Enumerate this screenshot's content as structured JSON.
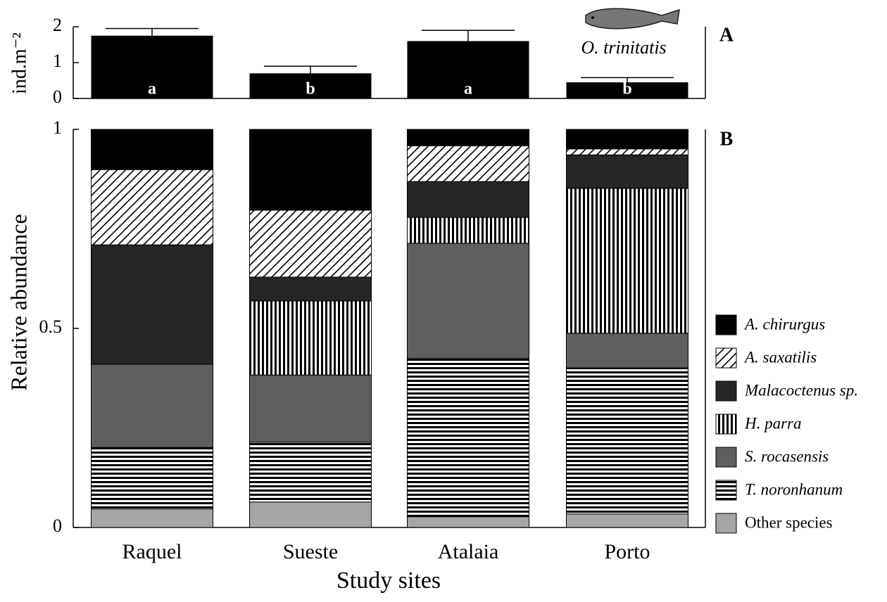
{
  "chart_data": [
    {
      "type": "bar",
      "panel": "A",
      "ylabel": "ind.m⁻²",
      "values": [
        1.75,
        0.7,
        1.6,
        0.45
      ],
      "errors": [
        0.2,
        0.2,
        0.3,
        0.13
      ],
      "group_letters": [
        "a",
        "b",
        "a",
        "b"
      ],
      "color": "#000000",
      "ylim": [
        0,
        2
      ],
      "yticks": [
        0,
        1,
        2
      ],
      "annotation": "O. trinitatis"
    },
    {
      "type": "stacked_bar",
      "panel": "B",
      "xlabel": "Study sites",
      "ylabel": "Relative abundance",
      "categories": [
        "Raquel",
        "Sueste",
        "Atalaia",
        "Porto"
      ],
      "ylim": [
        0,
        1
      ],
      "yticks": [
        0,
        0.5,
        1
      ],
      "legend": "right",
      "series": [
        {
          "name": "A. chirurgus",
          "color": "#000000",
          "italic": true,
          "values": [
            0.101,
            0.203,
            0.041,
            0.049
          ]
        },
        {
          "name": "A. saxatilis",
          "color": "#000000",
          "pattern": "diagonal",
          "italic": true,
          "values": [
            0.189,
            0.168,
            0.09,
            0.015
          ]
        },
        {
          "name": "Malacoctenus sp.",
          "color": "#262626",
          "italic": true,
          "values": [
            0.3,
            0.06,
            0.09,
            0.084
          ]
        },
        {
          "name": "H. parra",
          "color": "#000000",
          "pattern": "vertical",
          "italic": true,
          "values": [
            0,
            0.186,
            0.065,
            0.364
          ]
        },
        {
          "name": "S. rocasensis",
          "color": "#5e5e5e",
          "italic": true,
          "values": [
            0.209,
            0.169,
            0.29,
            0.087
          ]
        },
        {
          "name": "T. noronhanum",
          "color": "#000000",
          "pattern": "horizontal",
          "italic": true,
          "values": [
            0.155,
            0.15,
            0.397,
            0.367
          ]
        },
        {
          "name": "Other species",
          "color": "#a6a6a6",
          "italic": false,
          "values": [
            0.046,
            0.064,
            0.027,
            0.034
          ]
        }
      ]
    }
  ]
}
